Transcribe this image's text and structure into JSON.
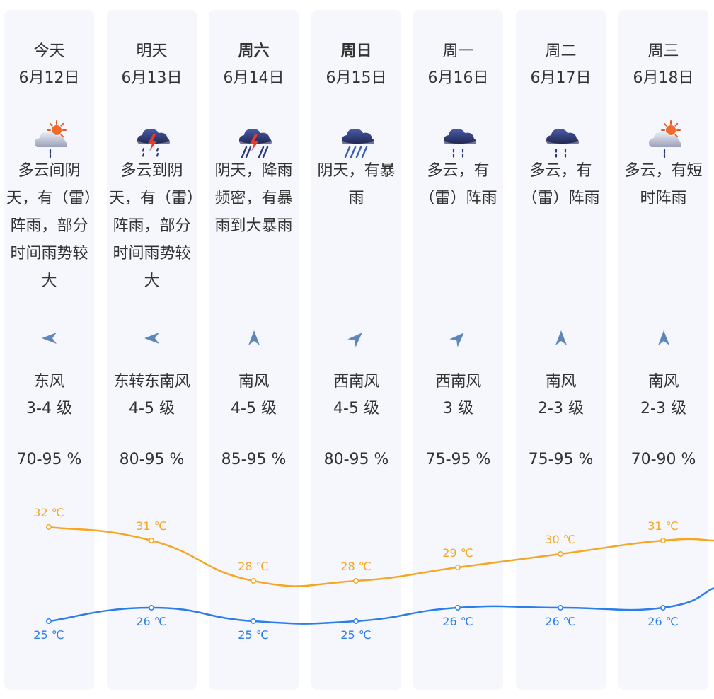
{
  "days": [
    {
      "day": "今天",
      "date": "6月12日",
      "bold": false,
      "icon": "partly-cloudy-rain-icon",
      "desc": "多云间阴天，有（雷）阵雨，部分时间雨势较大",
      "wind_icon": "wind-arrow-icon",
      "wind_dir": "东风",
      "wind_level": "3-4 级",
      "humidity": "70-95 %"
    },
    {
      "day": "明天",
      "date": "6月13日",
      "bold": false,
      "icon": "thunderstorm-icon",
      "desc": "多云到阴天，有（雷）阵雨，部分时间雨势较大",
      "wind_icon": "wind-arrow-icon",
      "wind_dir": "东转东南风",
      "wind_level": "4-5 级",
      "humidity": "80-95 %"
    },
    {
      "day": "周六",
      "date": "6月14日",
      "bold": true,
      "icon": "heavy-thunderstorm-icon",
      "desc": "阴天，降雨频密，有暴雨到大暴雨",
      "wind_icon": "wind-arrow-icon",
      "wind_dir": "南风",
      "wind_level": "4-5 级",
      "humidity": "85-95 %"
    },
    {
      "day": "周日",
      "date": "6月15日",
      "bold": true,
      "icon": "heavy-rain-icon",
      "desc": "阴天，有暴雨",
      "wind_icon": "wind-arrow-icon",
      "wind_dir": "西南风",
      "wind_level": "4-5 级",
      "humidity": "80-95 %"
    },
    {
      "day": "周一",
      "date": "6月16日",
      "bold": false,
      "icon": "cloud-rain-icon",
      "desc": "多云，有（雷）阵雨",
      "wind_icon": "wind-arrow-icon",
      "wind_dir": "西南风",
      "wind_level": "3 级",
      "humidity": "75-95 %"
    },
    {
      "day": "周二",
      "date": "6月17日",
      "bold": false,
      "icon": "cloud-rain-icon",
      "desc": "多云，有（雷）阵雨",
      "wind_icon": "wind-arrow-icon",
      "wind_dir": "南风",
      "wind_level": "2-3 级",
      "humidity": "75-95 %"
    },
    {
      "day": "周三",
      "date": "6月18日",
      "bold": false,
      "icon": "partly-cloudy-rain-icon",
      "desc": "多云，有短时阵雨",
      "wind_icon": "wind-arrow-icon",
      "wind_dir": "南风",
      "wind_level": "2-3 级",
      "humidity": "70-90 %"
    }
  ],
  "colors": {
    "high": "#f5a623",
    "low": "#2b7de9",
    "panel": "#f6f7fd",
    "text": "#333333"
  },
  "chart_data": {
    "type": "line",
    "categories": [
      "6月12日",
      "6月13日",
      "6月14日",
      "6月15日",
      "6月16日",
      "6月17日",
      "6月18日"
    ],
    "series": [
      {
        "values": [
          32,
          31,
          28,
          28,
          29,
          30,
          31
        ],
        "labels": [
          "32 ℃",
          "31 ℃",
          "28 ℃",
          "28 ℃",
          "29 ℃",
          "30 ℃",
          "31 ℃"
        ],
        "color": "#f5a623"
      },
      {
        "values": [
          25,
          26,
          25,
          25,
          26,
          26,
          26
        ],
        "labels": [
          "25 ℃",
          "26 ℃",
          "25 ℃",
          "25 ℃",
          "26 ℃",
          "26 ℃",
          "26 ℃"
        ],
        "color": "#2b7de9"
      }
    ],
    "unit": "℃",
    "grid": false,
    "legend": "none"
  }
}
